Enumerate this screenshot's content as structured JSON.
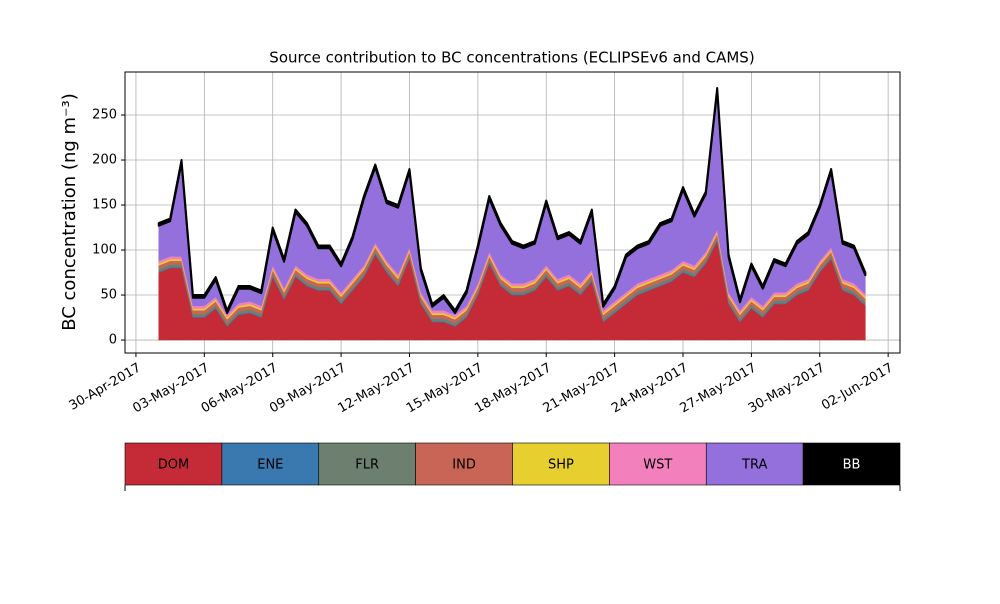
{
  "chart_data": {
    "type": "stacked_area",
    "title": "Source contribution to BC concentrations (ECLIPSEv6 and CAMS)",
    "y_label": "BC concentration (ng m⁻³)",
    "x": [
      1,
      1.5,
      2,
      2.5,
      3,
      3.5,
      4,
      4.5,
      5,
      5.5,
      6,
      6.5,
      7,
      7.5,
      8,
      8.5,
      9,
      9.5,
      10,
      10.5,
      11,
      11.5,
      12,
      12.5,
      13,
      13.5,
      14,
      14.5,
      15,
      15.5,
      16,
      16.5,
      17,
      17.5,
      18,
      18.5,
      19,
      19.5,
      20,
      20.5,
      21,
      21.5,
      22,
      22.5,
      23,
      23.5,
      24,
      24.5,
      25,
      25.5,
      26,
      26.5,
      27,
      27.5,
      28,
      28.5,
      29,
      29.5,
      30,
      30.5,
      31,
      31.5,
      32
    ],
    "series": [
      {
        "name": "DOM",
        "color": "#c52a37",
        "values": [
          75,
          80,
          80,
          25,
          25,
          35,
          15,
          28,
          30,
          25,
          70,
          45,
          70,
          60,
          55,
          55,
          40,
          55,
          70,
          95,
          75,
          60,
          90,
          40,
          20,
          20,
          15,
          25,
          50,
          85,
          60,
          50,
          50,
          55,
          70,
          55,
          60,
          50,
          65,
          20,
          30,
          40,
          50,
          55,
          60,
          65,
          75,
          70,
          85,
          110,
          40,
          20,
          35,
          25,
          40,
          40,
          50,
          55,
          75,
          90,
          55,
          50,
          38
        ]
      },
      {
        "name": "ENE",
        "color": "#3a78b0",
        "values": [
          1,
          1,
          1,
          1,
          1,
          1,
          1,
          1,
          1,
          1,
          1,
          1,
          1,
          1,
          1,
          1,
          1,
          1,
          1,
          1,
          1,
          1,
          1,
          1,
          1,
          1,
          1,
          1,
          1,
          1,
          1,
          1,
          1,
          1,
          1,
          1,
          1,
          1,
          1,
          1,
          1,
          1,
          1,
          1,
          1,
          1,
          1,
          1,
          1,
          1,
          1,
          1,
          1,
          1,
          1,
          1,
          1,
          1,
          1,
          1,
          1,
          1,
          1
        ]
      },
      {
        "name": "FLR",
        "color": "#6d8070",
        "values": [
          3,
          3,
          3,
          3,
          3,
          3,
          3,
          3,
          3,
          3,
          3,
          3,
          3,
          3,
          3,
          3,
          3,
          3,
          3,
          3,
          3,
          3,
          3,
          3,
          3,
          3,
          3,
          3,
          3,
          3,
          3,
          3,
          3,
          3,
          3,
          3,
          3,
          3,
          3,
          3,
          3,
          3,
          3,
          3,
          3,
          3,
          3,
          3,
          3,
          3,
          3,
          3,
          3,
          3,
          3,
          3,
          3,
          3,
          3,
          3,
          3,
          3,
          3
        ]
      },
      {
        "name": "IND",
        "color": "#c96556",
        "values": [
          4,
          4,
          4,
          4,
          4,
          4,
          4,
          4,
          4,
          4,
          4,
          4,
          4,
          4,
          4,
          4,
          4,
          4,
          4,
          4,
          4,
          4,
          4,
          4,
          4,
          4,
          4,
          4,
          4,
          4,
          4,
          4,
          4,
          4,
          4,
          4,
          4,
          4,
          4,
          4,
          4,
          4,
          4,
          4,
          4,
          4,
          4,
          4,
          4,
          4,
          4,
          4,
          4,
          4,
          4,
          4,
          4,
          4,
          4,
          4,
          4,
          4,
          4
        ]
      },
      {
        "name": "SHP",
        "color": "#e6cf2e",
        "values": [
          2,
          2,
          2,
          2,
          2,
          2,
          2,
          2,
          2,
          2,
          2,
          2,
          2,
          2,
          2,
          2,
          2,
          2,
          2,
          2,
          2,
          2,
          2,
          2,
          2,
          2,
          2,
          2,
          2,
          2,
          2,
          2,
          2,
          2,
          2,
          2,
          2,
          2,
          2,
          2,
          2,
          2,
          2,
          2,
          2,
          2,
          2,
          2,
          2,
          2,
          2,
          2,
          2,
          2,
          2,
          2,
          2,
          2,
          2,
          2,
          2,
          2,
          2
        ]
      },
      {
        "name": "WST",
        "color": "#f280bd",
        "values": [
          3,
          3,
          3,
          3,
          3,
          3,
          3,
          3,
          3,
          3,
          3,
          3,
          3,
          3,
          3,
          3,
          3,
          3,
          3,
          3,
          3,
          3,
          3,
          3,
          3,
          3,
          3,
          3,
          3,
          3,
          3,
          3,
          3,
          3,
          3,
          3,
          3,
          3,
          3,
          3,
          3,
          3,
          3,
          3,
          3,
          3,
          3,
          3,
          3,
          3,
          3,
          3,
          3,
          3,
          3,
          3,
          3,
          3,
          3,
          3,
          3,
          3,
          3
        ]
      },
      {
        "name": "TRA",
        "color": "#9370db",
        "values": [
          39,
          39,
          104,
          9,
          9,
          19,
          2,
          16,
          14,
          14,
          39,
          29,
          59,
          54,
          34,
          34,
          29,
          44,
          74,
          84,
          64,
          74,
          84,
          24,
          4,
          14,
          2,
          14,
          39,
          59,
          54,
          44,
          39,
          39,
          69,
          44,
          44,
          44,
          64,
          4,
          14,
          39,
          39,
          39,
          54,
          54,
          79,
          54,
          64,
          154,
          39,
          9,
          34,
          19,
          34,
          29,
          44,
          49,
          59,
          84,
          39,
          39,
          21
        ]
      },
      {
        "name": "BB",
        "color": "#000000",
        "values": [
          3,
          3,
          3,
          3,
          3,
          3,
          3,
          3,
          3,
          3,
          3,
          3,
          3,
          3,
          3,
          3,
          3,
          3,
          3,
          3,
          3,
          3,
          3,
          3,
          3,
          3,
          3,
          3,
          3,
          3,
          3,
          3,
          3,
          3,
          3,
          3,
          3,
          3,
          3,
          3,
          3,
          3,
          3,
          3,
          3,
          3,
          3,
          3,
          3,
          3,
          3,
          3,
          3,
          3,
          3,
          3,
          3,
          3,
          3,
          3,
          3,
          3,
          3
        ]
      }
    ],
    "xlim": [
      -0.48,
      33.52
    ],
    "xticks": [
      {
        "value": 0,
        "label": "30-Apr-2017"
      },
      {
        "value": 3,
        "label": "03-May-2017"
      },
      {
        "value": 6,
        "label": "06-May-2017"
      },
      {
        "value": 9,
        "label": "09-May-2017"
      },
      {
        "value": 12,
        "label": "12-May-2017"
      },
      {
        "value": 15,
        "label": "15-May-2017"
      },
      {
        "value": 18,
        "label": "18-May-2017"
      },
      {
        "value": 21,
        "label": "21-May-2017"
      },
      {
        "value": 24,
        "label": "24-May-2017"
      },
      {
        "value": 27,
        "label": "27-May-2017"
      },
      {
        "value": 30,
        "label": "30-May-2017"
      },
      {
        "value": 33,
        "label": "02-Jun-2017"
      }
    ],
    "ylim": [
      -14.4,
      297.8
    ],
    "yticks": [
      0,
      50,
      100,
      150,
      200,
      250
    ],
    "grid": true
  }
}
